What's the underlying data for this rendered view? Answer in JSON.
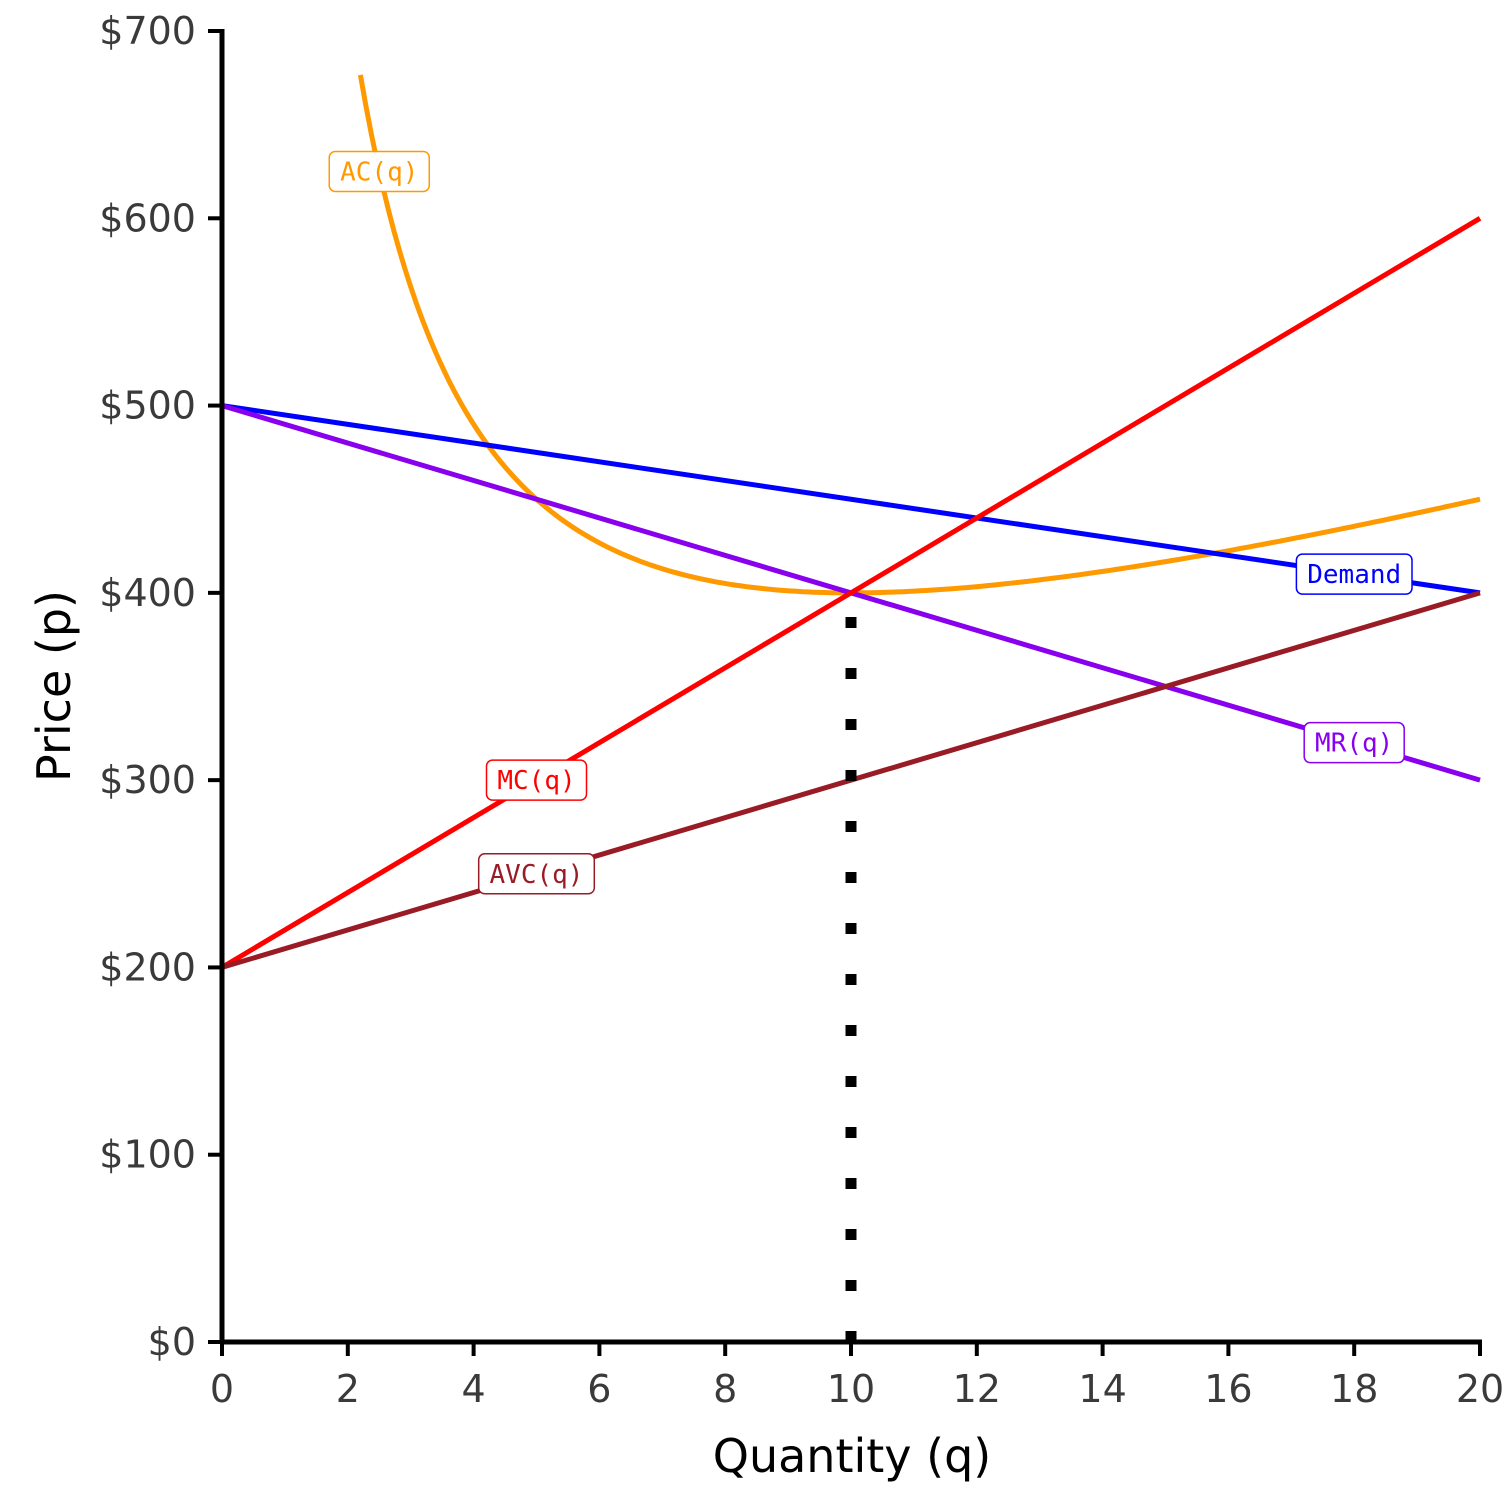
{
  "chart_data": {
    "type": "line",
    "xlabel": "Quantity (q)",
    "ylabel": "Price (p)",
    "xlim": [
      0,
      20
    ],
    "ylim": [
      0,
      700
    ],
    "x_ticks": [
      "0",
      "2",
      "4",
      "6",
      "8",
      "10",
      "12",
      "14",
      "16",
      "18",
      "20"
    ],
    "y_ticks": [
      "$0",
      "$100",
      "$200",
      "$300",
      "$400",
      "$500",
      "$600",
      "$700"
    ],
    "grid": false,
    "series": [
      {
        "name": "AC(q)",
        "color": "#FF9900",
        "formula": "200 + 10q + 1000/q",
        "x": [
          2.2,
          2.5,
          3,
          3.5,
          4,
          5,
          6,
          7,
          8,
          9,
          10,
          11,
          12,
          13,
          14,
          15,
          16,
          17,
          18,
          19,
          20
        ],
        "y": [
          676.5,
          625,
          563.3,
          520.7,
          490,
          450,
          426.7,
          412.9,
          405,
          401.1,
          400,
          400.9,
          403.3,
          406.9,
          411.4,
          416.7,
          422.5,
          428.8,
          435.6,
          442.6,
          450
        ],
        "label_at": [
          2.5,
          625
        ]
      },
      {
        "name": "Demand",
        "color": "#0000FF",
        "x": [
          0,
          20
        ],
        "y": [
          500,
          400
        ],
        "label_at": [
          18,
          410
        ]
      },
      {
        "name": "MR(q)",
        "color": "#8800EE",
        "x": [
          0,
          20
        ],
        "y": [
          500,
          300
        ],
        "label_at": [
          18,
          320
        ]
      },
      {
        "name": "MC(q)",
        "color": "#FF0000",
        "x": [
          0,
          20
        ],
        "y": [
          200,
          600
        ],
        "label_at": [
          5,
          300
        ]
      },
      {
        "name": "AVC(q)",
        "color": "#991B25",
        "x": [
          0,
          20
        ],
        "y": [
          200,
          400
        ],
        "label_at": [
          5,
          250
        ]
      }
    ],
    "reference_lines": [
      {
        "type": "vertical",
        "x": 10,
        "y_from": 0,
        "y_to": 400,
        "style": "dotted",
        "color": "#000000"
      }
    ]
  }
}
